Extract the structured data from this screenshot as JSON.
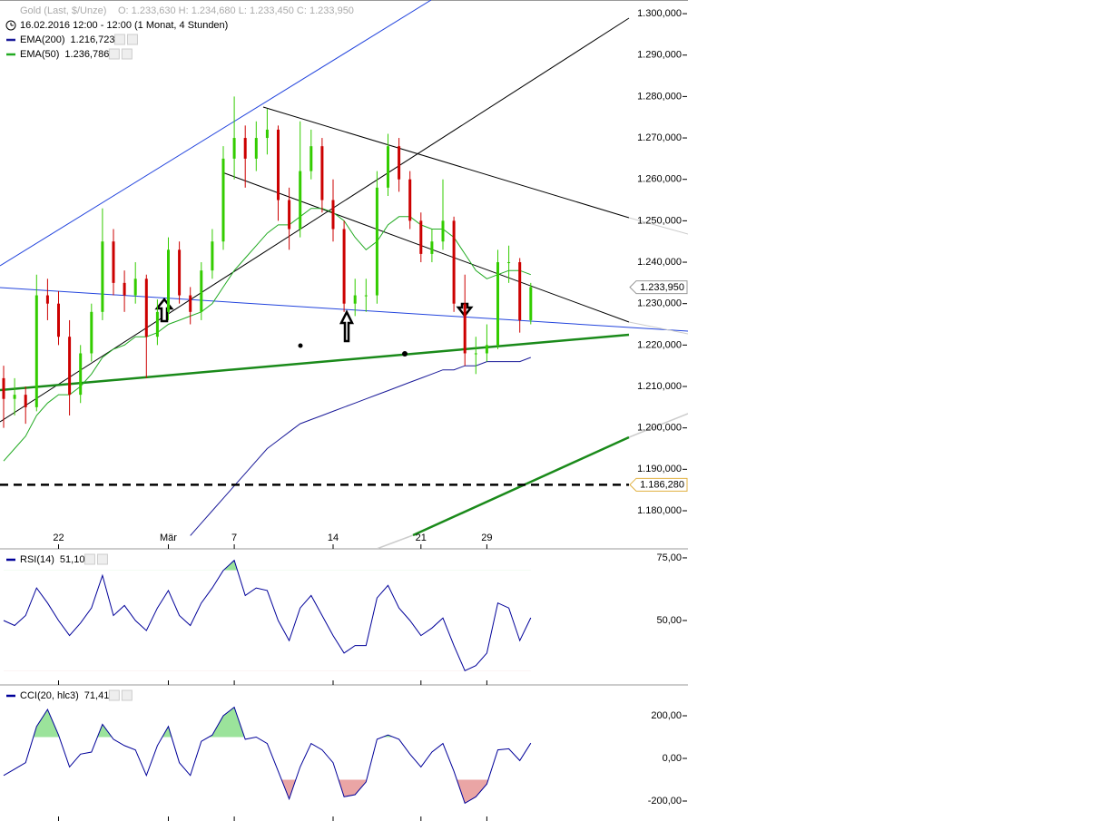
{
  "chart_data": [
    {
      "type": "candlestick",
      "title": "Gold (Last, $/Unze)",
      "quote": "O: 1.233,630   H: 1.234,680   L: 1.233,450   C: 1.233,950",
      "subtitle": "16.02.2016 12:00 - 12:00 (1 Monat, 4 Stunden)",
      "categories": [
        null,
        null,
        null,
        null,
        null,
        "22",
        null,
        null,
        null,
        null,
        null,
        null,
        null,
        null,
        null,
        "Mär",
        null,
        null,
        null,
        null,
        null,
        "7",
        null,
        null,
        null,
        null,
        null,
        null,
        null,
        null,
        "14",
        null,
        null,
        null,
        null,
        null,
        null,
        null,
        "21",
        null,
        null,
        null,
        null,
        null,
        "29",
        null,
        null,
        null,
        null
      ],
      "open": [
        1212,
        1207,
        1208,
        1205,
        1232,
        1230,
        1222,
        1208,
        1218,
        1228,
        1245,
        1235,
        1232,
        1236,
        1222,
        1228,
        1243,
        1232,
        1228,
        1238,
        1245,
        1265,
        1270,
        1265,
        1270,
        1272,
        1255,
        1248,
        1262,
        1268,
        1255,
        1248,
        1230,
        1232,
        1232,
        1258,
        1268,
        1260,
        1250,
        1242,
        1245,
        1250,
        1230,
        1218,
        1218,
        1220,
        1240,
        1240,
        1226
      ],
      "high": [
        1215,
        1212,
        1210,
        1237,
        1236,
        1233,
        1226,
        1220,
        1230,
        1253,
        1248,
        1238,
        1240,
        1237,
        1231,
        1246,
        1245,
        1234,
        1240,
        1248,
        1268,
        1280,
        1273,
        1274,
        1277,
        1273,
        1258,
        1274,
        1272,
        1270,
        1260,
        1250,
        1236,
        1236,
        1262,
        1271,
        1270,
        1262,
        1252,
        1248,
        1260,
        1251,
        1237,
        1222,
        1225,
        1243,
        1244,
        1241,
        1235
      ],
      "low": [
        1200,
        1203,
        1201,
        1204,
        1226,
        1220,
        1203,
        1206,
        1216,
        1226,
        1232,
        1228,
        1230,
        1212,
        1220,
        1226,
        1230,
        1225,
        1226,
        1236,
        1243,
        1260,
        1258,
        1262,
        1266,
        1250,
        1243,
        1246,
        1260,
        1252,
        1245,
        1228,
        1227,
        1228,
        1230,
        1256,
        1257,
        1248,
        1240,
        1240,
        1243,
        1228,
        1215,
        1213,
        1216,
        1219,
        1235,
        1223,
        1225
      ],
      "close": [
        1207,
        1208,
        1205,
        1232,
        1230,
        1222,
        1208,
        1218,
        1228,
        1245,
        1235,
        1232,
        1236,
        1222,
        1228,
        1243,
        1232,
        1228,
        1238,
        1245,
        1265,
        1270,
        1265,
        1270,
        1272,
        1255,
        1248,
        1262,
        1268,
        1255,
        1248,
        1230,
        1232,
        1232,
        1258,
        1268,
        1260,
        1250,
        1242,
        1245,
        1250,
        1230,
        1218,
        1218,
        1220,
        1240,
        1240,
        1226,
        1234
      ],
      "up_color": "#33cc00",
      "down_color": "#cc0000",
      "series": [
        {
          "name": "EMA(200)",
          "last_label": "1.216,723",
          "color": "#1a1a99",
          "values": [
            null,
            null,
            null,
            null,
            null,
            null,
            null,
            null,
            null,
            null,
            null,
            null,
            null,
            null,
            null,
            null,
            null,
            1174,
            1177,
            1180,
            1183,
            1186,
            1189,
            1192,
            1195,
            1197,
            1199,
            1201,
            1202,
            1203,
            1204,
            1205,
            1206,
            1207,
            1208,
            1209,
            1210,
            1211,
            1212,
            1213,
            1214,
            1214,
            1215,
            1215,
            1216,
            1216,
            1216,
            1216,
            1217
          ]
        },
        {
          "name": "EMA(50)",
          "last_label": "1.236,786",
          "color": "#22aa22",
          "values": [
            1192,
            1195,
            1198,
            1203,
            1206,
            1208,
            1208,
            1210,
            1213,
            1217,
            1219,
            1220,
            1222,
            1222,
            1223,
            1225,
            1226,
            1227,
            1228,
            1230,
            1234,
            1238,
            1241,
            1244,
            1247,
            1249,
            1249,
            1251,
            1253,
            1253,
            1252,
            1250,
            1246,
            1243,
            1245,
            1249,
            1251,
            1251,
            1249,
            1248,
            1248,
            1246,
            1242,
            1238,
            1236,
            1237,
            1238,
            1238,
            1237
          ]
        }
      ],
      "ylim": [
        1170.8,
        1303.3
      ],
      "yticks": [
        {
          "value": 1300,
          "label": "1.300,000"
        },
        {
          "value": 1290,
          "label": "1.290,000"
        },
        {
          "value": 1280,
          "label": "1.280,000"
        },
        {
          "value": 1270,
          "label": "1.270,000"
        },
        {
          "value": 1260,
          "label": "1.260,000"
        },
        {
          "value": 1250,
          "label": "1.250,000"
        },
        {
          "value": 1240,
          "label": "1.240,000"
        },
        {
          "value": 1230,
          "label": "1.230,000"
        },
        {
          "value": 1220,
          "label": "1.220,000"
        },
        {
          "value": 1210,
          "label": "1.210,000"
        },
        {
          "value": 1200,
          "label": "1.200,000"
        },
        {
          "value": 1190,
          "label": "1.190,000"
        },
        {
          "value": 1180,
          "label": "1.180,000"
        }
      ],
      "price_marker": {
        "value": 1233.95,
        "label": "1.233,950"
      },
      "level": {
        "value": 1186.28,
        "label": "1.186,280"
      }
    },
    {
      "type": "line",
      "series": [
        {
          "name": "RSI(14)",
          "last_label": "51,10",
          "color": "#000099",
          "values": [
            50,
            48,
            52,
            63,
            57,
            50,
            44,
            49,
            55,
            68,
            52,
            56,
            50,
            46,
            55,
            62,
            52,
            48,
            57,
            63,
            70,
            74,
            60,
            63,
            62,
            50,
            42,
            55,
            60,
            52,
            44,
            37,
            40,
            40,
            59,
            64,
            55,
            50,
            44,
            47,
            51,
            40,
            30,
            32,
            37,
            57,
            55,
            42,
            51.1
          ]
        }
      ],
      "ylim": [
        24.3,
        78.6
      ],
      "yticks": [
        {
          "value": 75,
          "label": "75,00"
        },
        {
          "value": 50,
          "label": "50,00"
        }
      ],
      "upper_band": 70,
      "lower_band": 30
    },
    {
      "type": "line",
      "series": [
        {
          "name": "CCI(20, hlc3)",
          "last_label": "71,41",
          "color": "#000099",
          "values": [
            -80,
            -50,
            -20,
            150,
            230,
            110,
            -40,
            20,
            30,
            160,
            90,
            60,
            40,
            -80,
            60,
            150,
            -20,
            -80,
            80,
            110,
            200,
            240,
            90,
            100,
            70,
            -60,
            -190,
            -40,
            70,
            40,
            -20,
            -180,
            -170,
            -110,
            90,
            110,
            90,
            20,
            -40,
            30,
            70,
            -60,
            -210,
            -180,
            -120,
            40,
            45,
            -10,
            71.41
          ]
        }
      ],
      "ylim": [
        -293.6,
        344.7
      ],
      "yticks": [
        {
          "value": 200,
          "label": "200,00"
        },
        {
          "value": 0,
          "label": "0,00"
        },
        {
          "value": -200,
          "label": "-200,00"
        }
      ],
      "upper_band": 100,
      "lower_band": -100
    }
  ]
}
